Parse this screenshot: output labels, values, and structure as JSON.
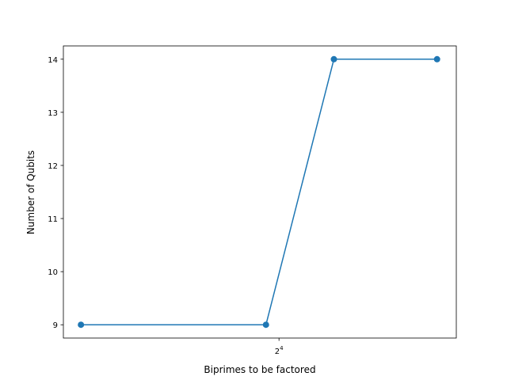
{
  "chart_data": {
    "type": "line",
    "xscale": "log2",
    "xlabel": "Biprimes to be factored",
    "ylabel": "Number of Qubits",
    "x": [
      6,
      15,
      21,
      35
    ],
    "xlim": [
      5.5,
      38.5
    ],
    "ylim": [
      8.75,
      14.25
    ],
    "xticks": [
      {
        "value": 16,
        "base": "2",
        "exp": "4"
      }
    ],
    "yticks": [
      {
        "value": 9,
        "label": "9"
      },
      {
        "value": 10,
        "label": "10"
      },
      {
        "value": 11,
        "label": "11"
      },
      {
        "value": 12,
        "label": "12"
      },
      {
        "value": 13,
        "label": "13"
      },
      {
        "value": 14,
        "label": "14"
      }
    ],
    "series": [
      {
        "values": [
          9,
          9,
          14,
          14
        ],
        "color": "#1f77b4",
        "marker": "circle"
      }
    ],
    "grid": false,
    "legend": "none"
  }
}
